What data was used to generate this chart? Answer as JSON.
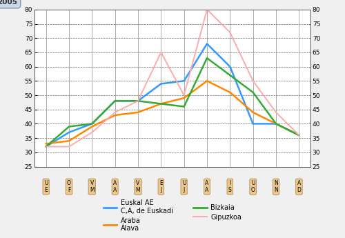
{
  "month_labels": [
    "E",
    "F",
    "M",
    "A",
    "M",
    "E",
    "J",
    "A",
    "S",
    "O",
    "N",
    "D"
  ],
  "month_sublabels": [
    "E",
    "F",
    "M",
    "A",
    "M",
    "J",
    "J",
    "A",
    "S",
    "O",
    "N",
    "D"
  ],
  "euskal_ae": [
    32,
    37,
    40,
    48,
    48,
    54,
    55,
    68,
    60,
    40,
    40,
    36
  ],
  "araba": [
    33,
    34,
    39,
    43,
    44,
    47,
    49,
    55,
    51,
    44,
    40,
    36
  ],
  "bizkaia": [
    32,
    39,
    40,
    48,
    48,
    47,
    46,
    63,
    57,
    51,
    40,
    36
  ],
  "gipuzkoa": [
    32,
    32,
    37,
    44,
    48,
    65,
    50,
    80,
    72,
    55,
    44,
    36
  ],
  "colors": {
    "euskal_ae": "#3399ff",
    "araba": "#ff8800",
    "bizkaia": "#33aa33",
    "gipuzkoa": "#ffaaaa"
  },
  "ylim": [
    25,
    80
  ],
  "yticks": [
    25,
    30,
    35,
    40,
    45,
    50,
    55,
    60,
    65,
    70,
    75,
    80
  ],
  "year_label": "2005",
  "bg_color": "#f0f0f0",
  "plot_bg": "#ffffff",
  "legend": [
    {
      "label": "Euskal AE\nC,A, de Euskadi",
      "color": "#3399ff"
    },
    {
      "label": "Araba\nÁlava",
      "color": "#ff8800"
    },
    {
      "label": "Bizkaia",
      "color": "#33aa33"
    },
    {
      "label": "Gipuzkoa",
      "color": "#ffaaaa"
    }
  ]
}
